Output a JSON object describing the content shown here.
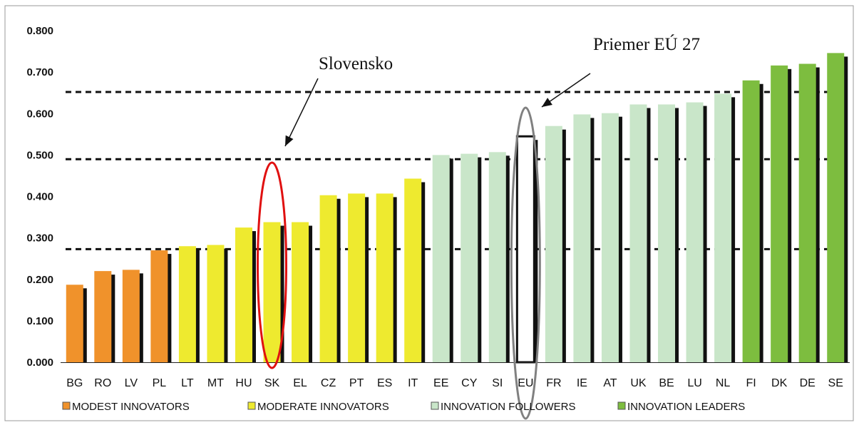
{
  "chart_data": {
    "type": "bar",
    "ylim": [
      0,
      0.8
    ],
    "yticks": [
      "0.000",
      "0.100",
      "0.200",
      "0.300",
      "0.400",
      "0.500",
      "0.600",
      "0.700",
      "0.800"
    ],
    "categories": [
      "BG",
      "RO",
      "LV",
      "PL",
      "LT",
      "MT",
      "HU",
      "SK",
      "EL",
      "CZ",
      "PT",
      "ES",
      "IT",
      "EE",
      "CY",
      "SI",
      "EU",
      "FR",
      "IE",
      "AT",
      "UK",
      "BE",
      "LU",
      "NL",
      "FI",
      "DK",
      "DE",
      "SE"
    ],
    "values": [
      0.187,
      0.22,
      0.223,
      0.27,
      0.28,
      0.283,
      0.325,
      0.338,
      0.338,
      0.403,
      0.407,
      0.407,
      0.443,
      0.5,
      0.503,
      0.507,
      0.545,
      0.57,
      0.598,
      0.601,
      0.622,
      0.622,
      0.627,
      0.648,
      0.68,
      0.716,
      0.72,
      0.746
    ],
    "groups": [
      "modest",
      "modest",
      "modest",
      "modest",
      "moderate",
      "moderate",
      "moderate",
      "moderate",
      "moderate",
      "moderate",
      "moderate",
      "moderate",
      "moderate",
      "follower",
      "follower",
      "follower",
      "eu",
      "follower",
      "follower",
      "follower",
      "follower",
      "follower",
      "follower",
      "follower",
      "leader",
      "leader",
      "leader",
      "leader"
    ],
    "thresholds": [
      0.273,
      0.49,
      0.652
    ],
    "legend": [
      {
        "key": "modest",
        "label": "MODEST INNOVATORS",
        "color": "#f0922b"
      },
      {
        "key": "moderate",
        "label": "MODERATE INNOVATORS",
        "color": "#eeea2f"
      },
      {
        "key": "follower",
        "label": "INNOVATION FOLLOWERS",
        "color": "#c9e6c9"
      },
      {
        "key": "leader",
        "label": "INNOVATION LEADERS",
        "color": "#7dbd3f"
      }
    ],
    "eu_color": "#ffffff",
    "annotations": [
      {
        "text": "Slovensko",
        "target": "SK"
      },
      {
        "text": "Priemer EÚ 27",
        "target": "EU"
      }
    ],
    "highlight_colors": {
      "SK": "#e01010",
      "EU": "#808080"
    },
    "grid": false,
    "legend_position": "bottom"
  }
}
